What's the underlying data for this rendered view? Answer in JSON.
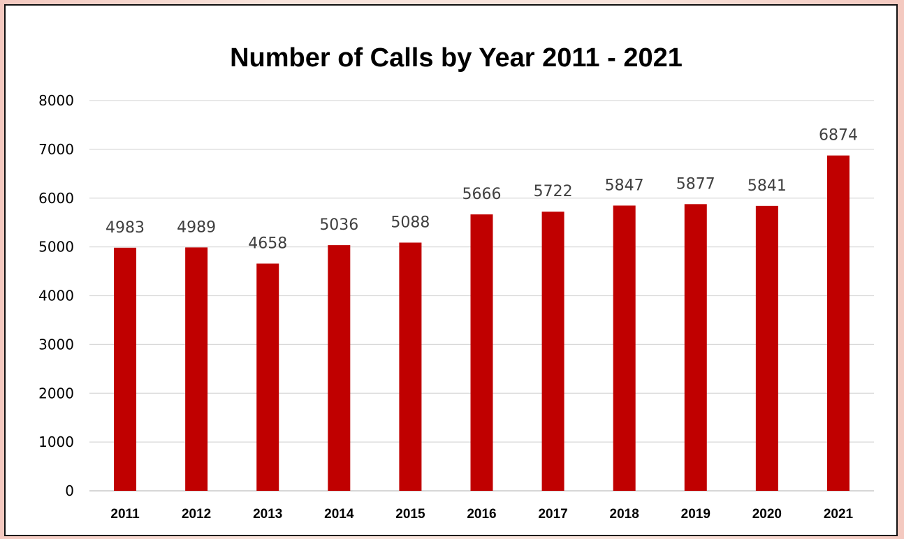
{
  "chart_data": {
    "type": "bar",
    "title": "Number of Calls by Year 2011 - 2021",
    "xlabel": "",
    "ylabel": "",
    "categories": [
      "2011",
      "2012",
      "2013",
      "2014",
      "2015",
      "2016",
      "2017",
      "2018",
      "2019",
      "2020",
      "2021"
    ],
    "values": [
      4983,
      4989,
      4658,
      5036,
      5088,
      5666,
      5722,
      5847,
      5877,
      5841,
      6874
    ],
    "ylim": [
      0,
      8000
    ],
    "yticks": [
      "0",
      "1000",
      "2000",
      "3000",
      "4000",
      "5000",
      "6000",
      "7000",
      "8000"
    ],
    "data_labels": true,
    "grid": true,
    "legend": "none",
    "bar_color": "#c00000"
  }
}
